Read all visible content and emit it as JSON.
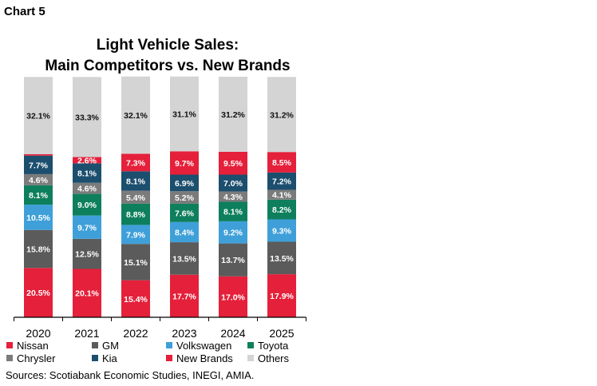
{
  "header": {
    "chart_label": "Chart 5",
    "title_line1": "Light Vehicle Sales:",
    "title_line2": "Main Competitors vs. New Brands"
  },
  "source": "Sources: Scotiabank Economic Studies, INEGI, AMIA.",
  "colors": {
    "Nissan": "#e5203a",
    "GM": "#5b5b5b",
    "Volkswagen": "#3fa0d9",
    "Toyota": "#0e7f5c",
    "Chrysler": "#7b7b7b",
    "Kia": "#1c4e6e",
    "New Brands": "#e5203a",
    "Others": "#d4d4d4"
  },
  "legend": [
    {
      "name": "Nissan"
    },
    {
      "name": "GM"
    },
    {
      "name": "Volkswagen"
    },
    {
      "name": "Toyota"
    },
    {
      "name": "Chrysler"
    },
    {
      "name": "Kia"
    },
    {
      "name": "New Brands"
    },
    {
      "name": "Others"
    }
  ],
  "chart_data": {
    "type": "bar",
    "stacked": true,
    "title": "Light Vehicle Sales: Main Competitors vs. New Brands",
    "categories": [
      "2020",
      "2021",
      "2022",
      "2023",
      "2024",
      "2025"
    ],
    "ylim": [
      0,
      100
    ],
    "series": [
      {
        "name": "Nissan",
        "values": [
          20.5,
          20.1,
          15.4,
          17.7,
          17.0,
          17.9
        ],
        "labels": [
          "20.5%",
          "20.1%",
          "15.4%",
          "17.7%",
          "17.0%",
          "17.9%"
        ]
      },
      {
        "name": "GM",
        "values": [
          15.8,
          12.5,
          15.1,
          13.5,
          13.7,
          13.5
        ],
        "labels": [
          "15.8%",
          "12.5%",
          "15.1%",
          "13.5%",
          "13.7%",
          "13.5%"
        ]
      },
      {
        "name": "Volkswagen",
        "values": [
          10.5,
          9.7,
          7.9,
          8.4,
          9.2,
          9.3
        ],
        "labels": [
          "10.5%",
          "9.7%",
          "7.9%",
          "8.4%",
          "9.2%",
          "9.3%"
        ]
      },
      {
        "name": "Toyota",
        "values": [
          8.1,
          9.0,
          8.8,
          7.6,
          8.1,
          8.2
        ],
        "labels": [
          "8.1%",
          "9.0%",
          "8.8%",
          "7.6%",
          "8.1%",
          "8.2%"
        ]
      },
      {
        "name": "Chrysler",
        "values": [
          4.6,
          4.6,
          5.4,
          5.2,
          4.3,
          4.1
        ],
        "labels": [
          "4.6%",
          "4.6%",
          "5.4%",
          "5.2%",
          "4.3%",
          "4.1%"
        ]
      },
      {
        "name": "Kia",
        "values": [
          7.7,
          8.1,
          8.1,
          6.9,
          7.0,
          7.2
        ],
        "labels": [
          "7.7%",
          "8.1%",
          "8.1%",
          "6.9%",
          "7.0%",
          "7.2%"
        ]
      },
      {
        "name": "New Brands",
        "values": [
          0.6,
          2.6,
          7.3,
          9.7,
          9.5,
          8.5
        ],
        "labels": [
          "",
          "2.6%",
          "7.3%",
          "9.7%",
          "9.5%",
          "8.5%"
        ]
      },
      {
        "name": "Others",
        "values": [
          32.1,
          33.3,
          32.1,
          31.1,
          31.2,
          31.2
        ],
        "labels": [
          "32.1%",
          "33.3%",
          "32.1%",
          "31.1%",
          "31.2%",
          "31.2%"
        ]
      }
    ]
  }
}
